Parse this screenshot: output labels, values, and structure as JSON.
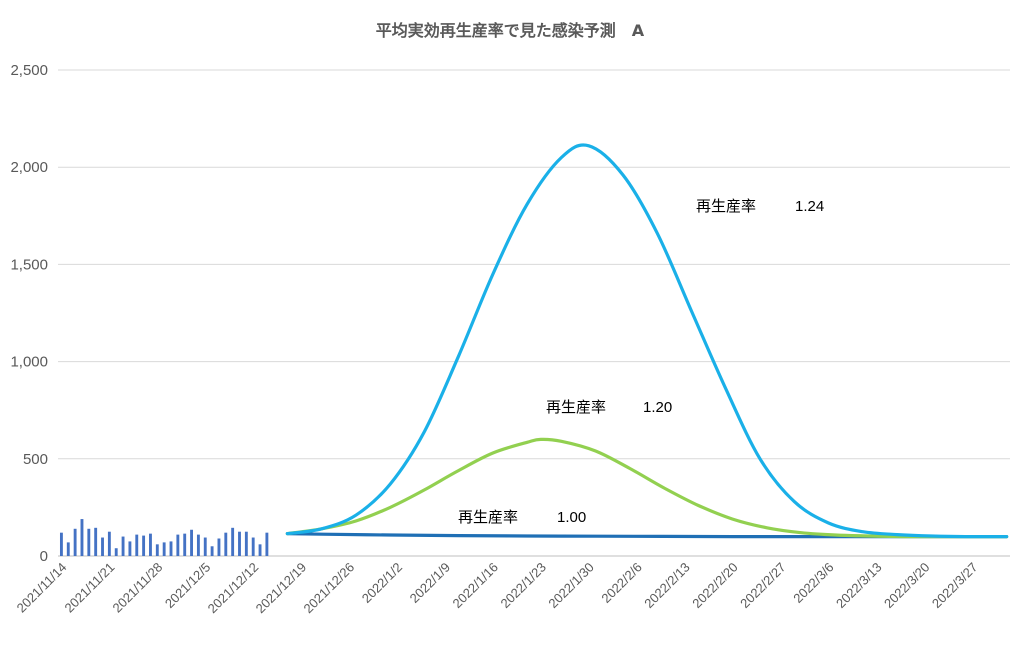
{
  "chart_data": {
    "type": "bar+line",
    "title": "平均実効再生産率で見た感染予測　A",
    "ylim": [
      0,
      2500
    ],
    "yticks": [
      "0",
      "500",
      "1,000",
      "1,500",
      "2,000",
      "2,500"
    ],
    "ytick_values": [
      0,
      500,
      1000,
      1500,
      2000,
      2500
    ],
    "grid": "horizontal",
    "legend": "none",
    "x_start": "2021/11/14",
    "x_end": "2022/4/1",
    "xtick_labels": [
      "2021/11/14",
      "2021/11/21",
      "2021/11/28",
      "2021/12/5",
      "2021/12/12",
      "2021/12/19",
      "2021/12/26",
      "2022/1/2",
      "2022/1/9",
      "2022/1/16",
      "2022/1/23",
      "2022/1/30",
      "2022/2/6",
      "2022/2/13",
      "2022/2/20",
      "2022/2/27",
      "2022/3/6",
      "2022/3/13",
      "2022/3/20",
      "2022/3/27"
    ],
    "bars": {
      "color": "#4472c4",
      "dates": [
        "2021/11/14",
        "2021/11/15",
        "2021/11/16",
        "2021/11/17",
        "2021/11/18",
        "2021/11/19",
        "2021/11/20",
        "2021/11/21",
        "2021/11/22",
        "2021/11/23",
        "2021/11/24",
        "2021/11/25",
        "2021/11/26",
        "2021/11/27",
        "2021/11/28",
        "2021/11/29",
        "2021/11/30",
        "2021/12/1",
        "2021/12/2",
        "2021/12/3",
        "2021/12/4",
        "2021/12/5",
        "2021/12/6",
        "2021/12/7",
        "2021/12/8",
        "2021/12/9",
        "2021/12/10",
        "2021/12/11",
        "2021/12/12",
        "2021/12/13",
        "2021/12/14",
        "2021/12/15",
        "2021/12/16"
      ],
      "values": [
        120,
        70,
        140,
        190,
        140,
        145,
        95,
        125,
        40,
        100,
        75,
        110,
        105,
        115,
        60,
        70,
        75,
        110,
        115,
        135,
        110,
        95,
        50,
        90,
        120,
        145,
        125,
        125,
        95,
        60,
        120,
        0,
        0
      ]
    },
    "series": [
      {
        "name": "再生産率　1.24",
        "color": "#1ab0e8",
        "x": [
          "2021/12/17",
          "2021/12/22",
          "2021/12/27",
          "2022/1/1",
          "2022/1/6",
          "2022/1/11",
          "2022/1/16",
          "2022/1/21",
          "2022/1/26",
          "2022/1/30",
          "2022/2/4",
          "2022/2/9",
          "2022/2/14",
          "2022/2/19",
          "2022/2/24",
          "2022/3/1",
          "2022/3/6",
          "2022/3/11",
          "2022/3/16",
          "2022/3/21",
          "2022/3/26",
          "2022/4/1"
        ],
        "y": [
          115,
          140,
          210,
          370,
          640,
          1030,
          1450,
          1810,
          2050,
          2110,
          1960,
          1660,
          1260,
          860,
          500,
          280,
          170,
          125,
          110,
          103,
          100,
          100
        ]
      },
      {
        "name": "再生産率　1.20",
        "color": "#92d050",
        "x": [
          "2021/12/17",
          "2021/12/22",
          "2021/12/27",
          "2022/1/1",
          "2022/1/6",
          "2022/1/11",
          "2022/1/16",
          "2022/1/21",
          "2022/1/23",
          "2022/1/26",
          "2022/1/31",
          "2022/2/5",
          "2022/2/10",
          "2022/2/15",
          "2022/2/20",
          "2022/2/25",
          "2022/3/2",
          "2022/3/7",
          "2022/3/12",
          "2022/3/17",
          "2022/3/22",
          "2022/3/27",
          "2022/4/1"
        ],
        "y": [
          115,
          140,
          180,
          250,
          340,
          440,
          530,
          585,
          600,
          590,
          540,
          450,
          350,
          260,
          190,
          145,
          120,
          108,
          103,
          100,
          100,
          100,
          100
        ]
      },
      {
        "name": "再生産率　1.00",
        "color": "#1f6fb5",
        "x": [
          "2021/12/17",
          "2021/12/22",
          "2022/1/1",
          "2022/1/11",
          "2022/1/21",
          "2022/1/31",
          "2022/2/10",
          "2022/2/20",
          "2022/3/2",
          "2022/3/12",
          "2022/3/22",
          "2022/4/1"
        ],
        "y": [
          115,
          112,
          108,
          105,
          103,
          102,
          101,
          100,
          100,
          100,
          100,
          100
        ]
      }
    ],
    "annotations": [
      {
        "label": "再生産率",
        "value": "1.24"
      },
      {
        "label": "再生産率",
        "value": "1.20"
      },
      {
        "label": "再生産率",
        "value": "1.00"
      }
    ]
  }
}
